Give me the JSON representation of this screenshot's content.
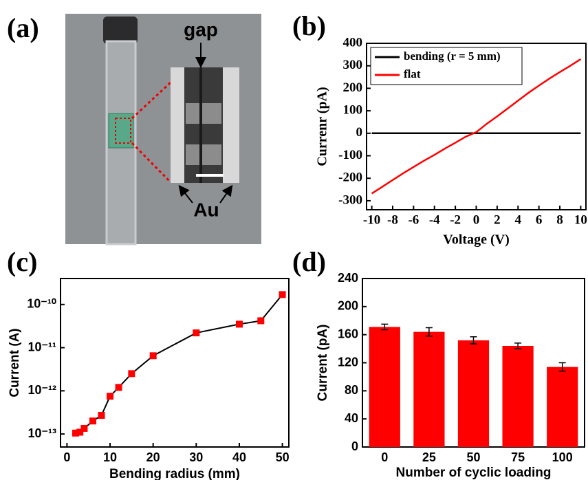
{
  "photo": {
    "label": "(a)",
    "gap_label": "gap",
    "electrode_label": "Au"
  },
  "chart_data": [
    {
      "type": "line",
      "label": "(b)",
      "x_label": "Voltage (V)",
      "y_label": "Currenr (pA)",
      "x": [
        -10,
        -9,
        -8,
        -7,
        -6,
        -5,
        -4,
        -3,
        -2,
        -1,
        0,
        1,
        2,
        3,
        4,
        5,
        6,
        7,
        8,
        9,
        10
      ],
      "series": [
        {
          "name": "bending (r = 5 mm)",
          "color": "#000000",
          "values": [
            0,
            0,
            0,
            0,
            0,
            0,
            0,
            0,
            0,
            0,
            0,
            0,
            0,
            0,
            0,
            0,
            0,
            0,
            0,
            0,
            0
          ]
        },
        {
          "name": "flat",
          "color": "#ff0000",
          "values": [
            -268,
            -238,
            -208,
            -178,
            -150,
            -122,
            -96,
            -68,
            -42,
            -15,
            5,
            42,
            75,
            110,
            145,
            180,
            212,
            243,
            272,
            300,
            330
          ]
        }
      ],
      "xlim": [
        -10.5,
        10.5
      ],
      "xticks": [
        -10,
        -8,
        -6,
        -4,
        -2,
        0,
        2,
        4,
        6,
        8,
        10
      ],
      "ylim": [
        -340,
        400
      ],
      "yticks": [
        -300,
        -200,
        -100,
        0,
        100,
        200,
        300,
        400
      ],
      "legend": "top-left"
    },
    {
      "type": "scatter-line",
      "label": "(c)",
      "x_label": "Bending radius (mm)",
      "y_label": "Current (A)",
      "x": [
        2,
        3,
        4,
        6,
        8,
        10,
        12,
        15,
        20,
        30,
        40,
        45,
        50
      ],
      "series": [
        {
          "color": "#ff0000",
          "line_color": "#000000",
          "values": [
            1.05e-13,
            1.1e-13,
            1.35e-13,
            2e-13,
            2.7e-13,
            7.5e-13,
            1.2e-12,
            2.5e-12,
            6.5e-12,
            2.2e-11,
            3.5e-11,
            4.2e-11,
            1.7e-10
          ]
        }
      ],
      "xlim": [
        -1.5,
        51.5
      ],
      "xticks": [
        0,
        10,
        20,
        30,
        40,
        50
      ],
      "ylim": [
        5e-14,
        4e-10
      ],
      "log_y": true,
      "yticks": [
        {
          "value": 1e-13,
          "label": "10⁻¹³"
        },
        {
          "value": 1e-12,
          "label": "10⁻¹²"
        },
        {
          "value": 1e-11,
          "label": "10⁻¹¹"
        },
        {
          "value": 1e-10,
          "label": "10⁻¹⁰"
        }
      ]
    },
    {
      "type": "bar",
      "label": "(d)",
      "x_label": "Number of cyclic loading",
      "y_label": "Current (pA)",
      "categories": [
        "0",
        "25",
        "50",
        "75",
        "100"
      ],
      "series": [
        {
          "color": "#ff0000",
          "values": [
            171,
            164,
            152,
            144,
            114
          ],
          "errors": [
            4,
            6,
            5,
            4,
            6
          ]
        }
      ],
      "ylim": [
        0,
        240
      ],
      "yticks": [
        0,
        40,
        80,
        120,
        160,
        200,
        240
      ]
    }
  ]
}
